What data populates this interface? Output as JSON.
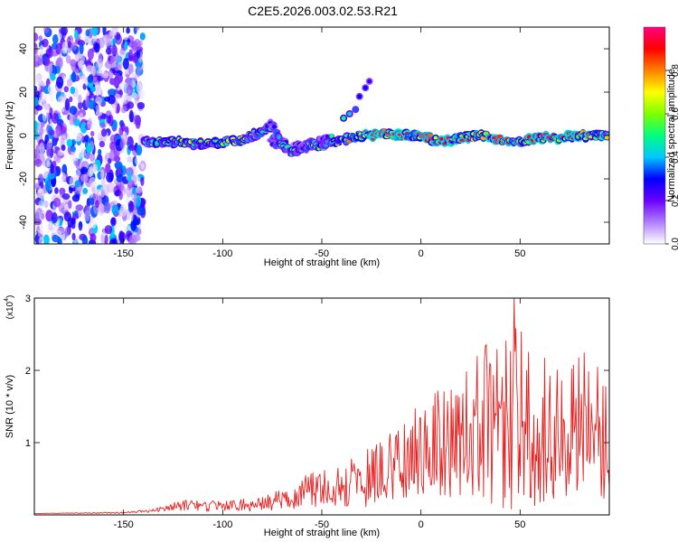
{
  "chart_data": [
    {
      "type": "heatmap",
      "title": "C2E5.2026.003.02.53.R21",
      "xlabel": "Height of straight line (km)",
      "ylabel": "Frequency (Hz)",
      "xlim": [
        -195,
        95
      ],
      "ylim": [
        -50,
        50
      ],
      "x_ticks": [
        -150,
        -100,
        -50,
        0,
        50
      ],
      "y_ticks": [
        -40,
        -20,
        0,
        20,
        40
      ],
      "colorbar": {
        "label": "Normalized spectral amplitude",
        "range": [
          0,
          1
        ],
        "ticks": [
          "0.0",
          "0.2",
          "0.4",
          "0.6",
          "0.8"
        ],
        "tick_values": [
          0.0,
          0.2,
          0.4,
          0.6,
          0.8
        ],
        "colors": [
          "#ffffff",
          "#b07fff",
          "#6a00ff",
          "#0000ff",
          "#00c8ff",
          "#00ff7f",
          "#7fff00",
          "#ffff00",
          "#ff8000",
          "#ff0000",
          "#ff0080"
        ]
      },
      "signal_trace": {
        "x": [
          -140,
          -130,
          -120,
          -110,
          -100,
          -90,
          -85,
          -80,
          -75,
          -70,
          -65,
          -60,
          -55,
          -50,
          -45,
          -40,
          -35,
          -30,
          -25,
          -20,
          -10,
          0,
          10,
          20,
          30,
          40,
          50,
          60,
          70,
          80,
          90,
          95
        ],
        "freq": [
          -3,
          -3,
          -3,
          -4,
          -3,
          -2,
          0,
          2,
          5,
          -5,
          -8,
          -6,
          -4,
          -5,
          -3,
          -2,
          -1,
          0,
          0,
          1,
          0,
          0,
          -3,
          -1,
          0,
          -2,
          -3,
          -1,
          -1,
          0,
          0,
          -1
        ],
        "amp": [
          0.35,
          0.55,
          0.6,
          0.5,
          0.55,
          0.6,
          0.45,
          0.5,
          0.4,
          0.5,
          0.4,
          0.45,
          0.5,
          0.55,
          0.5,
          0.55,
          0.7,
          0.8,
          0.85,
          0.9,
          0.95,
          0.9,
          0.85,
          0.8,
          0.85,
          0.9,
          0.8,
          0.85,
          0.9,
          0.85,
          0.8,
          0.6
        ]
      },
      "branch_trace": {
        "x": [
          -75,
          -70,
          -65,
          -60,
          -55,
          -50,
          -45
        ],
        "freq": [
          -2,
          -4,
          -6,
          -5,
          -4,
          -3,
          -2
        ],
        "amp": [
          0.3,
          0.35,
          0.3,
          0.3,
          0.35,
          0.4,
          0.45
        ]
      },
      "outlier_points": {
        "x": [
          -39,
          -36,
          -33,
          -31,
          -28,
          -26
        ],
        "freq": [
          8,
          10,
          12,
          18,
          22,
          25
        ],
        "amp": [
          0.5,
          0.4,
          0.35,
          0.3,
          0.3,
          0.25
        ]
      },
      "noise_region": [
        -195,
        -140
      ]
    },
    {
      "type": "line",
      "xlabel": "Height of straight line (km)",
      "ylabel": "SNR (10 * v/v)",
      "exponent_label": "(x10",
      "exponent_power": "4",
      "xlim": [
        -195,
        95
      ],
      "ylim": [
        0,
        3
      ],
      "x_ticks": [
        -150,
        -100,
        -50,
        0,
        50
      ],
      "y_ticks": [
        1,
        2,
        3
      ],
      "color": "#e82020",
      "envelope": {
        "x": [
          -195,
          -150,
          -140,
          -130,
          -120,
          -110,
          -100,
          -80,
          -70,
          -60,
          -50,
          -40,
          -30,
          -20,
          -10,
          0,
          10,
          20,
          30,
          40,
          50,
          60,
          70,
          80,
          90,
          95
        ],
        "mean": [
          0.02,
          0.03,
          0.05,
          0.08,
          0.14,
          0.12,
          0.12,
          0.15,
          0.22,
          0.3,
          0.4,
          0.42,
          0.5,
          0.6,
          0.85,
          0.95,
          1.05,
          1.1,
          1.25,
          1.3,
          1.2,
          1.15,
          1.1,
          1.2,
          1.15,
          1.0
        ],
        "amp": [
          0.0,
          0.01,
          0.02,
          0.04,
          0.08,
          0.08,
          0.07,
          0.1,
          0.15,
          0.22,
          0.28,
          0.3,
          0.4,
          0.45,
          0.65,
          0.7,
          0.8,
          0.9,
          1.1,
          1.25,
          1.4,
          1.1,
          1.0,
          1.1,
          0.95,
          0.8
        ]
      },
      "peak": {
        "x": 47,
        "y": 3.0
      }
    }
  ]
}
